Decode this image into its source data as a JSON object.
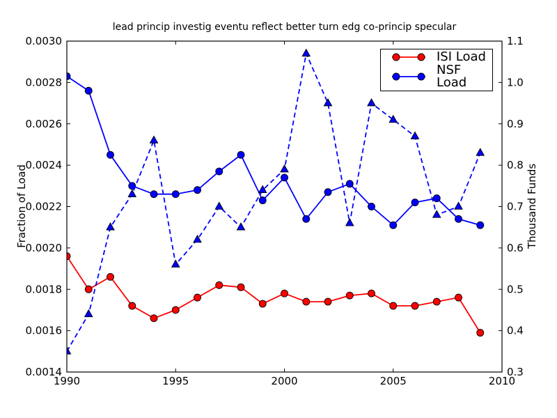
{
  "figure": {
    "background": "#ffffff"
  },
  "chart_data": {
    "type": "line",
    "title": "lead princip investig eventu reflect better turn edg co-princip specular",
    "x": [
      1990,
      1991,
      1992,
      1993,
      1994,
      1995,
      1996,
      1997,
      1998,
      1999,
      2000,
      2001,
      2002,
      2003,
      2004,
      2005,
      2006,
      2007,
      2008,
      2009
    ],
    "x_range": [
      1990,
      2010
    ],
    "x_ticks": [
      "1990",
      "1995",
      "2000",
      "2005",
      "2010"
    ],
    "left_axis": {
      "label": "Fraction of Load",
      "range": [
        0.0014,
        0.003
      ],
      "ticks": [
        "0.0014",
        "0.0016",
        "0.0018",
        "0.0020",
        "0.0022",
        "0.0024",
        "0.0026",
        "0.0028",
        "0.0030"
      ]
    },
    "right_axis": {
      "label": "Thousand Funds",
      "range": [
        0.3,
        1.1
      ],
      "ticks": [
        "0.3",
        "0.4",
        "0.5",
        "0.6",
        "0.7",
        "0.8",
        "0.9",
        "1.0",
        "1.1"
      ]
    },
    "grid": false,
    "series": [
      {
        "name": "ISI Load",
        "axis": "left",
        "color": "#ff0000",
        "line": "solid",
        "marker": "circle",
        "in_legend": true,
        "values": [
          0.00196,
          0.0018,
          0.00186,
          0.00172,
          0.00166,
          0.0017,
          0.00176,
          0.00182,
          0.00181,
          0.00173,
          0.00178,
          0.00174,
          0.00174,
          0.00177,
          0.00178,
          0.00172,
          0.00172,
          0.00174,
          0.00176,
          0.00159
        ]
      },
      {
        "name": "NSF Load",
        "axis": "left",
        "color": "#0000ff",
        "line": "solid",
        "marker": "circle",
        "in_legend": true,
        "values": [
          0.00283,
          0.00276,
          0.00245,
          0.0023,
          0.00226,
          0.00226,
          0.00228,
          0.00237,
          0.00245,
          0.00223,
          0.00234,
          0.00214,
          0.00227,
          0.00231,
          0.0022,
          0.00211,
          0.00222,
          0.00224,
          0.00214,
          0.00211
        ]
      },
      {
        "name": "",
        "axis": "right",
        "color": "#0000ff",
        "line": "dashed",
        "marker": "triangle",
        "in_legend": false,
        "values": [
          0.35,
          0.44,
          0.65,
          0.73,
          0.86,
          0.56,
          0.62,
          0.7,
          0.65,
          0.74,
          0.79,
          1.07,
          0.95,
          0.66,
          0.95,
          0.91,
          0.87,
          0.68,
          0.7,
          0.83
        ]
      }
    ],
    "legend": {
      "position": "upper right",
      "items": [
        {
          "label": "ISI Load",
          "color": "#ff0000"
        },
        {
          "label": "NSF Load",
          "color": "#0000ff"
        }
      ]
    }
  }
}
